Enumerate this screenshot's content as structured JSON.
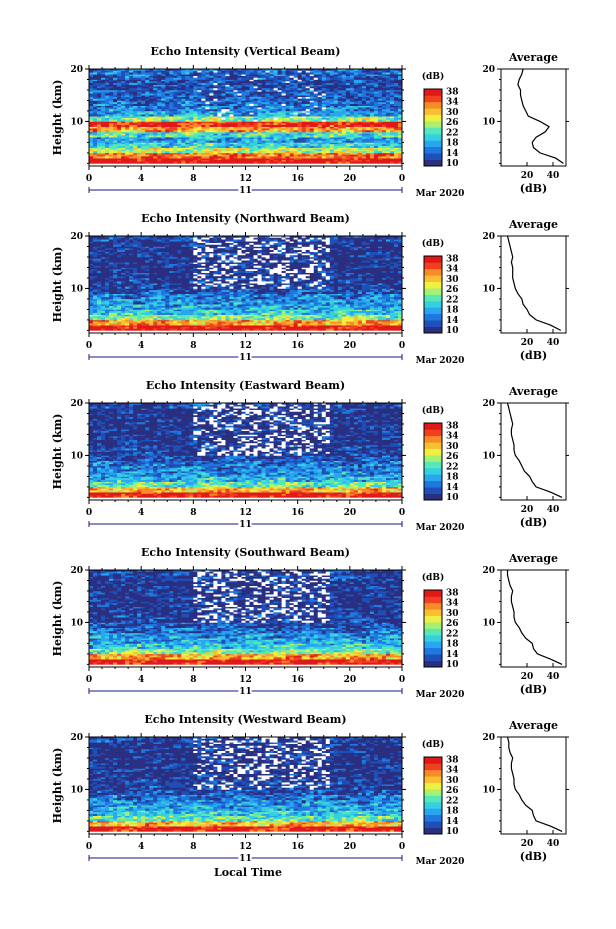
{
  "figure": {
    "xlabel": "Local Time",
    "date_label": "Mar 2020",
    "day_label": "11"
  },
  "colorbar": {
    "label": "(dB)",
    "ticks": [
      "10",
      "14",
      "18",
      "22",
      "26",
      "30",
      "34",
      "38"
    ]
  },
  "colors": {
    "scale": [
      "#2a2f80",
      "#1f4fb8",
      "#1e78e0",
      "#28a6f0",
      "#34d0e0",
      "#56e8b8",
      "#a8f070",
      "#f0f040",
      "#f8c030",
      "#f88a28",
      "#f04020",
      "#e01818"
    ]
  },
  "chart_data": [
    {
      "type": "heatmap",
      "title": "Echo Intensity (Vertical Beam)",
      "xlabel": "",
      "ylabel": "Height (km)",
      "x_ticks": [
        "0",
        "4",
        "8",
        "12",
        "16",
        "20",
        "0"
      ],
      "y_ticks": [
        "10",
        "20"
      ],
      "xlim": [
        0,
        24
      ],
      "ylim": [
        1.5,
        20
      ],
      "clim": [
        10,
        38
      ],
      "layers": [
        {
          "height_km": 2.5,
          "value": 38
        },
        {
          "height_km": 3.5,
          "value": 33
        },
        {
          "height_km": 4.5,
          "value": 26
        },
        {
          "height_km": 5.5,
          "value": 21
        },
        {
          "height_km": 6.5,
          "value": 18
        },
        {
          "height_km": 7.5,
          "value": 22
        },
        {
          "height_km": 8.5,
          "value": 31
        },
        {
          "height_km": 9.5,
          "value": 36
        },
        {
          "height_km": 10.5,
          "value": 24
        },
        {
          "height_km": 11.5,
          "value": 18
        },
        {
          "height_km": 12.5,
          "value": 16
        },
        {
          "height_km": 13.5,
          "value": 15
        },
        {
          "height_km": 14.5,
          "value": 14
        },
        {
          "height_km": 15.5,
          "value": 14
        },
        {
          "height_km": 16.5,
          "value": 13
        },
        {
          "height_km": 17.5,
          "value": 13
        },
        {
          "height_km": 18.5,
          "value": 14
        },
        {
          "height_km": 19.5,
          "value": 15
        }
      ],
      "average": {
        "title": "Average",
        "xlabel": "(dB)",
        "x_ticks": [
          "20",
          "40"
        ],
        "y_ticks": [
          "10",
          "20"
        ],
        "xlim": [
          0,
          50
        ],
        "ylim": [
          1.5,
          20
        ],
        "height_km": [
          2,
          3,
          4,
          5,
          6,
          7,
          8,
          9,
          10,
          11,
          12,
          13,
          14,
          15,
          16,
          17,
          18,
          19,
          20
        ],
        "db": [
          48,
          42,
          30,
          25,
          24,
          27,
          34,
          37,
          30,
          21,
          19,
          17,
          16,
          15,
          15,
          13,
          14,
          16,
          17
        ]
      }
    },
    {
      "type": "heatmap",
      "title": "Echo Intensity (Northward Beam)",
      "xlabel": "",
      "ylabel": "Height (km)",
      "x_ticks": [
        "0",
        "4",
        "8",
        "12",
        "16",
        "20",
        "0"
      ],
      "y_ticks": [
        "10",
        "20"
      ],
      "xlim": [
        0,
        24
      ],
      "ylim": [
        1.5,
        20
      ],
      "clim": [
        10,
        38
      ],
      "layers": [
        {
          "height_km": 2.5,
          "value": 37
        },
        {
          "height_km": 3.5,
          "value": 31
        },
        {
          "height_km": 4.5,
          "value": 24
        },
        {
          "height_km": 5.5,
          "value": 20
        },
        {
          "height_km": 6.5,
          "value": 18
        },
        {
          "height_km": 7.5,
          "value": 17
        },
        {
          "height_km": 8.5,
          "value": 16
        },
        {
          "height_km": 9.5,
          "value": 13
        },
        {
          "height_km": 10.5,
          "value": 12
        },
        {
          "height_km": 11.5,
          "value": 12
        },
        {
          "height_km": 12.5,
          "value": 11
        },
        {
          "height_km": 13.5,
          "value": 11
        },
        {
          "height_km": 14.5,
          "value": 11
        },
        {
          "height_km": 15.5,
          "value": 11
        },
        {
          "height_km": 16.5,
          "value": 11
        },
        {
          "height_km": 17.5,
          "value": 11
        },
        {
          "height_km": 18.5,
          "value": 11
        },
        {
          "height_km": 19.5,
          "value": 12
        }
      ],
      "average": {
        "title": "Average",
        "xlabel": "(dB)",
        "x_ticks": [
          "20",
          "40"
        ],
        "y_ticks": [
          "10",
          "20"
        ],
        "xlim": [
          0,
          50
        ],
        "ylim": [
          1.5,
          20
        ],
        "height_km": [
          2,
          3,
          4,
          5,
          6,
          7,
          8,
          9,
          10,
          11,
          12,
          13,
          14,
          15,
          16,
          17,
          18,
          19,
          20
        ],
        "db": [
          46,
          38,
          27,
          22,
          20,
          17,
          16,
          13,
          11,
          10,
          9,
          9,
          9,
          8,
          9,
          8,
          7,
          6,
          5
        ]
      }
    },
    {
      "type": "heatmap",
      "title": "Echo Intensity (Eastward Beam)",
      "xlabel": "",
      "ylabel": "Height (km)",
      "x_ticks": [
        "0",
        "4",
        "8",
        "12",
        "16",
        "20",
        "0"
      ],
      "y_ticks": [
        "10",
        "20"
      ],
      "xlim": [
        0,
        24
      ],
      "ylim": [
        1.5,
        20
      ],
      "clim": [
        10,
        38
      ],
      "layers": [
        {
          "height_km": 2.5,
          "value": 37
        },
        {
          "height_km": 3.5,
          "value": 30
        },
        {
          "height_km": 4.5,
          "value": 23
        },
        {
          "height_km": 5.5,
          "value": 19
        },
        {
          "height_km": 6.5,
          "value": 17
        },
        {
          "height_km": 7.5,
          "value": 16
        },
        {
          "height_km": 8.5,
          "value": 15
        },
        {
          "height_km": 9.5,
          "value": 13
        },
        {
          "height_km": 10.5,
          "value": 12
        },
        {
          "height_km": 11.5,
          "value": 12
        },
        {
          "height_km": 12.5,
          "value": 11
        },
        {
          "height_km": 13.5,
          "value": 11
        },
        {
          "height_km": 14.5,
          "value": 11
        },
        {
          "height_km": 15.5,
          "value": 11
        },
        {
          "height_km": 16.5,
          "value": 11
        },
        {
          "height_km": 17.5,
          "value": 11
        },
        {
          "height_km": 18.5,
          "value": 11
        },
        {
          "height_km": 19.5,
          "value": 12
        }
      ],
      "average": {
        "title": "Average",
        "xlabel": "(dB)",
        "x_ticks": [
          "20",
          "40"
        ],
        "y_ticks": [
          "10",
          "20"
        ],
        "xlim": [
          0,
          50
        ],
        "ylim": [
          1.5,
          20
        ],
        "height_km": [
          2,
          3,
          4,
          5,
          6,
          7,
          8,
          9,
          10,
          11,
          12,
          13,
          14,
          15,
          16,
          17,
          18,
          19,
          20
        ],
        "db": [
          47,
          38,
          27,
          24,
          22,
          18,
          16,
          14,
          11,
          10,
          10,
          9,
          8,
          8,
          9,
          8,
          7,
          6,
          5
        ]
      }
    },
    {
      "type": "heatmap",
      "title": "Echo Intensity (Southward Beam)",
      "xlabel": "",
      "ylabel": "Height (km)",
      "x_ticks": [
        "0",
        "4",
        "8",
        "12",
        "16",
        "20",
        "0"
      ],
      "y_ticks": [
        "10",
        "20"
      ],
      "xlim": [
        0,
        24
      ],
      "ylim": [
        1.5,
        20
      ],
      "clim": [
        10,
        38
      ],
      "layers": [
        {
          "height_km": 2.5,
          "value": 37
        },
        {
          "height_km": 3.5,
          "value": 31
        },
        {
          "height_km": 4.5,
          "value": 24
        },
        {
          "height_km": 5.5,
          "value": 20
        },
        {
          "height_km": 6.5,
          "value": 18
        },
        {
          "height_km": 7.5,
          "value": 17
        },
        {
          "height_km": 8.5,
          "value": 15
        },
        {
          "height_km": 9.5,
          "value": 13
        },
        {
          "height_km": 10.5,
          "value": 12
        },
        {
          "height_km": 11.5,
          "value": 12
        },
        {
          "height_km": 12.5,
          "value": 11
        },
        {
          "height_km": 13.5,
          "value": 11
        },
        {
          "height_km": 14.5,
          "value": 11
        },
        {
          "height_km": 15.5,
          "value": 11
        },
        {
          "height_km": 16.5,
          "value": 11
        },
        {
          "height_km": 17.5,
          "value": 11
        },
        {
          "height_km": 18.5,
          "value": 12
        },
        {
          "height_km": 19.5,
          "value": 12
        }
      ],
      "average": {
        "title": "Average",
        "xlabel": "(dB)",
        "x_ticks": [
          "20",
          "40"
        ],
        "y_ticks": [
          "10",
          "20"
        ],
        "xlim": [
          0,
          50
        ],
        "ylim": [
          1.5,
          20
        ],
        "height_km": [
          2,
          3,
          4,
          5,
          6,
          7,
          8,
          9,
          10,
          11,
          12,
          13,
          14,
          15,
          16,
          17,
          18,
          19,
          20
        ],
        "db": [
          47,
          38,
          28,
          25,
          24,
          19,
          16,
          14,
          11,
          10,
          10,
          9,
          8,
          8,
          9,
          7,
          6,
          5,
          5
        ]
      }
    },
    {
      "type": "heatmap",
      "title": "Echo Intensity (Westward Beam)",
      "xlabel": "Local Time",
      "ylabel": "Height (km)",
      "x_ticks": [
        "0",
        "4",
        "8",
        "12",
        "16",
        "20",
        "0"
      ],
      "y_ticks": [
        "10",
        "20"
      ],
      "xlim": [
        0,
        24
      ],
      "ylim": [
        1.5,
        20
      ],
      "clim": [
        10,
        38
      ],
      "layers": [
        {
          "height_km": 2.5,
          "value": 37
        },
        {
          "height_km": 3.5,
          "value": 30
        },
        {
          "height_km": 4.5,
          "value": 23
        },
        {
          "height_km": 5.5,
          "value": 20
        },
        {
          "height_km": 6.5,
          "value": 18
        },
        {
          "height_km": 7.5,
          "value": 17
        },
        {
          "height_km": 8.5,
          "value": 15
        },
        {
          "height_km": 9.5,
          "value": 13
        },
        {
          "height_km": 10.5,
          "value": 12
        },
        {
          "height_km": 11.5,
          "value": 12
        },
        {
          "height_km": 12.5,
          "value": 11
        },
        {
          "height_km": 13.5,
          "value": 11
        },
        {
          "height_km": 14.5,
          "value": 11
        },
        {
          "height_km": 15.5,
          "value": 11
        },
        {
          "height_km": 16.5,
          "value": 11
        },
        {
          "height_km": 17.5,
          "value": 11
        },
        {
          "height_km": 18.5,
          "value": 11
        },
        {
          "height_km": 19.5,
          "value": 12
        }
      ],
      "average": {
        "title": "Average",
        "xlabel": "(dB)",
        "x_ticks": [
          "20",
          "40"
        ],
        "y_ticks": [
          "10",
          "20"
        ],
        "xlim": [
          0,
          50
        ],
        "ylim": [
          1.5,
          20
        ],
        "height_km": [
          2,
          3,
          4,
          5,
          6,
          7,
          8,
          9,
          10,
          11,
          12,
          13,
          14,
          15,
          16,
          17,
          18,
          19,
          20
        ],
        "db": [
          47,
          38,
          27,
          25,
          24,
          19,
          16,
          14,
          11,
          10,
          10,
          9,
          8,
          8,
          9,
          7,
          6,
          6,
          5
        ]
      }
    }
  ]
}
